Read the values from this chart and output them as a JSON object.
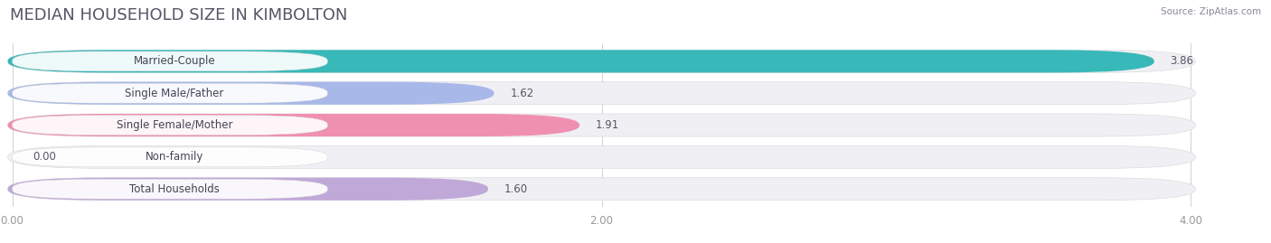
{
  "title": "MEDIAN HOUSEHOLD SIZE IN KIMBOLTON",
  "source": "Source: ZipAtlas.com",
  "categories": [
    "Married-Couple",
    "Single Male/Father",
    "Single Female/Mother",
    "Non-family",
    "Total Households"
  ],
  "values": [
    3.86,
    1.62,
    1.91,
    0.0,
    1.6
  ],
  "bar_colors": [
    "#38b8b8",
    "#a8b8e8",
    "#f090b0",
    "#f8c898",
    "#c0a8d8"
  ],
  "value_labels": [
    "3.86",
    "1.62",
    "1.91",
    "0.00",
    "1.60"
  ],
  "xlim": [
    0,
    4.0
  ],
  "xticks": [
    0.0,
    2.0,
    4.0
  ],
  "xticklabels": [
    "0.00",
    "2.00",
    "4.00"
  ],
  "title_fontsize": 13,
  "label_fontsize": 8.5,
  "value_fontsize": 8.5,
  "background_color": "#ffffff",
  "figsize": [
    14.06,
    2.69
  ],
  "dpi": 100
}
